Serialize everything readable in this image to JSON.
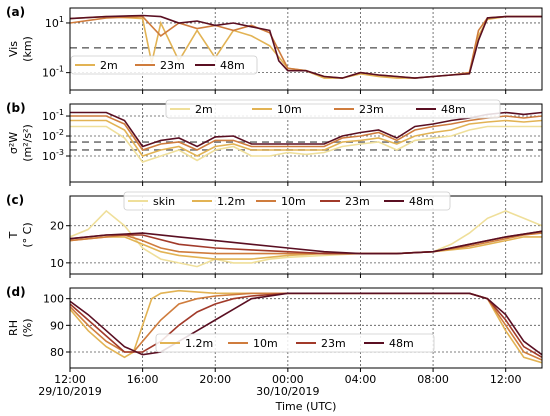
{
  "figure": {
    "xlabel": "Time (UTC)",
    "x_ticks": [
      {
        "label": "12:00",
        "sublabel": "29/10/2019",
        "hours": 0
      },
      {
        "label": "16:00",
        "sublabel": "",
        "hours": 4
      },
      {
        "label": "20:00",
        "sublabel": "",
        "hours": 8
      },
      {
        "label": "00:00",
        "sublabel": "30/10/2019",
        "hours": 12
      },
      {
        "label": "04:00",
        "sublabel": "",
        "hours": 16
      },
      {
        "label": "08:00",
        "sublabel": "",
        "hours": 20
      },
      {
        "label": "12:00",
        "sublabel": "",
        "hours": 24
      }
    ],
    "x_range_hours": [
      0,
      26
    ]
  },
  "colors": {
    "c1": "#efdf9a",
    "c2": "#e2b354",
    "c3": "#cf7c3d",
    "c4": "#a13a2a",
    "c5": "#5a0f22"
  },
  "chart_data": [
    {
      "panel": "(a)",
      "type": "line",
      "ylabel_line1": "Vis",
      "ylabel_line2": "(km)",
      "yscale": "log",
      "ylim": [
        0.02,
        40
      ],
      "y_ticks": [
        {
          "label": "10",
          "sup": "1",
          "value": 10
        },
        {
          "label": "10",
          "sup": "-1",
          "value": 0.1
        }
      ],
      "threshold": 1,
      "legend": "bottom-left",
      "series": [
        {
          "name": "2m",
          "color_key": "c2",
          "x": [
            0,
            2,
            4,
            4.5,
            5,
            6,
            7,
            8,
            9,
            10,
            11,
            12,
            13,
            14,
            15,
            16,
            17,
            18,
            19,
            20,
            21,
            22,
            22.5,
            23,
            24,
            26
          ],
          "y": [
            15,
            18,
            15,
            0.25,
            10,
            0.3,
            5,
            0.4,
            5,
            3,
            1.2,
            0.15,
            0.12,
            0.06,
            0.06,
            0.09,
            0.07,
            0.06,
            0.06,
            0.07,
            0.08,
            0.09,
            3,
            14,
            18,
            18
          ]
        },
        {
          "name": "23m",
          "color_key": "c3",
          "x": [
            0,
            2,
            4,
            5,
            6,
            7,
            8,
            9,
            10,
            11,
            12,
            13,
            14,
            15,
            16,
            17,
            18,
            19,
            20,
            21,
            22,
            22.5,
            23,
            24,
            26
          ],
          "y": [
            10,
            16,
            18,
            3,
            10,
            6,
            8,
            5,
            8,
            4,
            0.15,
            0.12,
            0.07,
            0.06,
            0.1,
            0.08,
            0.07,
            0.06,
            0.07,
            0.08,
            0.1,
            5,
            16,
            18,
            18
          ]
        },
        {
          "name": "48m",
          "color_key": "c5",
          "x": [
            0,
            2,
            4,
            5,
            6,
            7,
            8,
            9,
            10,
            11,
            11.5,
            12,
            13,
            14,
            15,
            16,
            17,
            18,
            19,
            20,
            21,
            22,
            22.5,
            23,
            24,
            26
          ],
          "y": [
            15,
            18,
            20,
            18,
            10,
            12,
            8,
            10,
            7,
            5,
            0.3,
            0.12,
            0.12,
            0.07,
            0.06,
            0.1,
            0.08,
            0.07,
            0.06,
            0.07,
            0.08,
            0.09,
            2,
            16,
            18,
            18
          ]
        }
      ]
    },
    {
      "panel": "(b)",
      "type": "line",
      "ylabel_line1": "σ²W",
      "ylabel_line2": "(m²/s²)",
      "yscale": "log",
      "ylim": [
        5e-05,
        0.4
      ],
      "y_ticks": [
        {
          "label": "10",
          "sup": "-1",
          "value": 0.1
        },
        {
          "label": "10",
          "sup": "-2",
          "value": 0.01
        },
        {
          "label": "10",
          "sup": "-3",
          "value": 0.001
        }
      ],
      "thresholds": [
        0.005,
        0.002
      ],
      "legend": "top",
      "series": [
        {
          "name": "2m",
          "color_key": "c1",
          "x": [
            0,
            2,
            3,
            4,
            5,
            6,
            7,
            8,
            9,
            10,
            11,
            12,
            13,
            14,
            15,
            16,
            17,
            18,
            19,
            20,
            21,
            22,
            23,
            24,
            25,
            26
          ],
          "y": [
            0.03,
            0.03,
            0.008,
            0.0005,
            0.001,
            0.002,
            0.0006,
            0.002,
            0.003,
            0.001,
            0.001,
            0.0015,
            0.0012,
            0.0015,
            0.003,
            0.004,
            0.005,
            0.002,
            0.006,
            0.008,
            0.01,
            0.02,
            0.03,
            0.03,
            0.03,
            0.03
          ]
        },
        {
          "name": "10m",
          "color_key": "c2",
          "x": [
            0,
            2,
            3,
            4,
            5,
            6,
            7,
            8,
            9,
            10,
            11,
            12,
            13,
            14,
            15,
            16,
            17,
            18,
            19,
            20,
            21,
            22,
            23,
            24,
            25,
            26
          ],
          "y": [
            0.06,
            0.06,
            0.02,
            0.001,
            0.002,
            0.003,
            0.001,
            0.003,
            0.004,
            0.002,
            0.002,
            0.002,
            0.002,
            0.002,
            0.005,
            0.006,
            0.008,
            0.004,
            0.01,
            0.015,
            0.02,
            0.04,
            0.05,
            0.06,
            0.05,
            0.06
          ]
        },
        {
          "name": "23m",
          "color_key": "c3",
          "x": [
            0,
            2,
            3,
            4,
            5,
            6,
            7,
            8,
            9,
            10,
            11,
            12,
            13,
            14,
            15,
            16,
            17,
            18,
            19,
            20,
            21,
            22,
            23,
            24,
            25,
            26
          ],
          "y": [
            0.1,
            0.1,
            0.04,
            0.002,
            0.004,
            0.005,
            0.002,
            0.006,
            0.006,
            0.003,
            0.003,
            0.003,
            0.003,
            0.003,
            0.008,
            0.01,
            0.015,
            0.006,
            0.02,
            0.03,
            0.04,
            0.06,
            0.08,
            0.1,
            0.08,
            0.1
          ]
        },
        {
          "name": "48m",
          "color_key": "c5",
          "x": [
            0,
            2,
            3,
            4,
            5,
            6,
            7,
            8,
            9,
            10,
            11,
            12,
            13,
            14,
            15,
            16,
            17,
            18,
            19,
            20,
            21,
            22,
            23,
            24,
            25,
            26
          ],
          "y": [
            0.15,
            0.15,
            0.06,
            0.003,
            0.006,
            0.008,
            0.003,
            0.009,
            0.01,
            0.004,
            0.004,
            0.004,
            0.004,
            0.004,
            0.01,
            0.015,
            0.02,
            0.008,
            0.03,
            0.04,
            0.06,
            0.08,
            0.12,
            0.15,
            0.12,
            0.15
          ]
        }
      ]
    },
    {
      "panel": "(c)",
      "type": "line",
      "ylabel_line1": "T",
      "ylabel_line2": "(° C)",
      "yscale": "linear",
      "ylim": [
        7,
        28
      ],
      "y_ticks": [
        {
          "label": "20",
          "sup": "",
          "value": 20
        },
        {
          "label": "10",
          "sup": "",
          "value": 10
        }
      ],
      "legend": "top",
      "series": [
        {
          "name": "skin",
          "color_key": "c1",
          "x": [
            0,
            1,
            2,
            3,
            4,
            5,
            6,
            7,
            8,
            9,
            10,
            11,
            12,
            14,
            16,
            18,
            20,
            21,
            22,
            23,
            24,
            25,
            26
          ],
          "y": [
            17,
            19,
            24,
            20,
            14,
            11,
            10,
            9,
            11,
            10,
            10,
            11,
            11.5,
            12,
            12.5,
            12.5,
            13,
            15,
            18,
            22,
            24,
            22,
            20
          ]
        },
        {
          "name": "1.2m",
          "color_key": "c2",
          "x": [
            0,
            2,
            3,
            4,
            5,
            6,
            8,
            10,
            12,
            14,
            16,
            18,
            20,
            22,
            23,
            24,
            25,
            26
          ],
          "y": [
            16,
            17,
            17,
            15,
            13,
            12,
            11,
            11,
            12,
            12.5,
            12.5,
            12.5,
            13,
            14,
            15,
            16,
            17,
            17
          ]
        },
        {
          "name": "10m",
          "color_key": "c3",
          "x": [
            0,
            2,
            3,
            4,
            5,
            6,
            8,
            10,
            12,
            14,
            16,
            18,
            20,
            22,
            23,
            24,
            25,
            26
          ],
          "y": [
            16,
            17,
            17.5,
            16,
            14,
            13,
            12.5,
            12.5,
            12.5,
            12.5,
            12.5,
            12.5,
            13,
            14.5,
            15.5,
            16.5,
            17.5,
            18
          ]
        },
        {
          "name": "23m",
          "color_key": "c4",
          "x": [
            0,
            2,
            4,
            6,
            8,
            10,
            12,
            14,
            16,
            18,
            20,
            22,
            24,
            26
          ],
          "y": [
            16.5,
            17.5,
            17.5,
            15,
            14,
            13.5,
            13,
            12.5,
            12.5,
            12.5,
            13,
            15,
            17,
            18.5
          ]
        },
        {
          "name": "48m",
          "color_key": "c5",
          "x": [
            0,
            2,
            4,
            6,
            8,
            10,
            12,
            14,
            16,
            18,
            20,
            22,
            24,
            26
          ],
          "y": [
            16.5,
            17.5,
            18,
            17,
            16,
            15,
            14,
            13,
            12.5,
            12.5,
            13,
            15,
            17,
            18.5
          ]
        }
      ]
    },
    {
      "panel": "(d)",
      "type": "line",
      "ylabel_line1": "RH",
      "ylabel_line2": "(%)",
      "yscale": "linear",
      "ylim": [
        74,
        104
      ],
      "y_ticks": [
        {
          "label": "100",
          "sup": "",
          "value": 100
        },
        {
          "label": "90",
          "sup": "",
          "value": 90
        },
        {
          "label": "80",
          "sup": "",
          "value": 80
        }
      ],
      "legend": "bottom",
      "series": [
        {
          "name": "1.2m",
          "color_key": "c2",
          "x": [
            0,
            1,
            2,
            3,
            3.5,
            4,
            4.5,
            5,
            6,
            8,
            10,
            12,
            16,
            20,
            22,
            23,
            24,
            25,
            26
          ],
          "y": [
            96,
            88,
            82,
            78,
            80,
            90,
            100,
            102,
            103,
            102,
            102,
            102,
            102,
            102,
            102,
            100,
            88,
            78,
            76
          ]
        },
        {
          "name": "10m",
          "color_key": "c3",
          "x": [
            0,
            1,
            2,
            3,
            3.5,
            4,
            5,
            6,
            7,
            8,
            10,
            12,
            16,
            20,
            22,
            23,
            24,
            25,
            26
          ],
          "y": [
            97,
            90,
            84,
            80,
            80,
            84,
            92,
            98,
            100,
            101,
            102,
            102,
            102,
            102,
            102,
            100,
            90,
            80,
            77
          ]
        },
        {
          "name": "23m",
          "color_key": "c4",
          "x": [
            0,
            1,
            2,
            3,
            4,
            5,
            6,
            7,
            8,
            9,
            10,
            12,
            16,
            20,
            22,
            23,
            24,
            25,
            26
          ],
          "y": [
            98,
            92,
            86,
            80,
            80,
            84,
            90,
            95,
            98,
            100,
            101,
            102,
            102,
            102,
            102,
            100,
            92,
            82,
            78
          ]
        },
        {
          "name": "48m",
          "color_key": "c5",
          "x": [
            0,
            1,
            2,
            3,
            4,
            5,
            6,
            7,
            8,
            9,
            10,
            12,
            16,
            20,
            22,
            23,
            24,
            25,
            26
          ],
          "y": [
            99,
            94,
            88,
            82,
            79,
            80,
            84,
            88,
            92,
            96,
            100,
            102,
            102,
            102,
            102,
            100,
            94,
            84,
            79
          ]
        }
      ]
    }
  ]
}
